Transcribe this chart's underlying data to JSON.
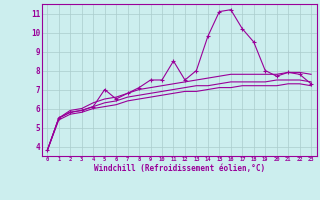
{
  "xlabel": "Windchill (Refroidissement éolien,°C)",
  "x_values": [
    0,
    1,
    2,
    3,
    4,
    5,
    6,
    7,
    8,
    9,
    10,
    11,
    12,
    13,
    14,
    15,
    16,
    17,
    18,
    19,
    20,
    21,
    22,
    23
  ],
  "main_line": [
    3.8,
    5.5,
    5.8,
    5.9,
    6.1,
    7.0,
    6.5,
    6.8,
    7.1,
    7.5,
    7.5,
    8.5,
    7.5,
    8.0,
    9.8,
    11.1,
    11.2,
    10.2,
    9.5,
    8.0,
    7.7,
    7.9,
    7.8,
    7.3
  ],
  "upper_line": [
    3.8,
    5.5,
    5.9,
    6.0,
    6.3,
    6.5,
    6.6,
    6.8,
    7.0,
    7.1,
    7.2,
    7.3,
    7.4,
    7.5,
    7.6,
    7.7,
    7.8,
    7.8,
    7.8,
    7.8,
    7.8,
    7.9,
    7.9,
    7.8
  ],
  "mid_line": [
    3.8,
    5.5,
    5.8,
    5.9,
    6.1,
    6.3,
    6.4,
    6.6,
    6.7,
    6.8,
    6.9,
    7.0,
    7.1,
    7.2,
    7.2,
    7.3,
    7.4,
    7.4,
    7.4,
    7.4,
    7.5,
    7.5,
    7.5,
    7.4
  ],
  "lower_line": [
    3.8,
    5.4,
    5.7,
    5.8,
    6.0,
    6.1,
    6.2,
    6.4,
    6.5,
    6.6,
    6.7,
    6.8,
    6.9,
    6.9,
    7.0,
    7.1,
    7.1,
    7.2,
    7.2,
    7.2,
    7.2,
    7.3,
    7.3,
    7.2
  ],
  "line_color": "#990099",
  "bg_color": "#cceeee",
  "grid_color": "#aacccc",
  "axis_color": "#990099",
  "ylim": [
    3.5,
    11.5
  ],
  "yticks": [
    4,
    5,
    6,
    7,
    8,
    9,
    10,
    11
  ],
  "xlim": [
    -0.5,
    23.5
  ],
  "marker": "+",
  "xtick_fontsize": 4.0,
  "ytick_fontsize": 5.5,
  "xlabel_fontsize": 5.5
}
